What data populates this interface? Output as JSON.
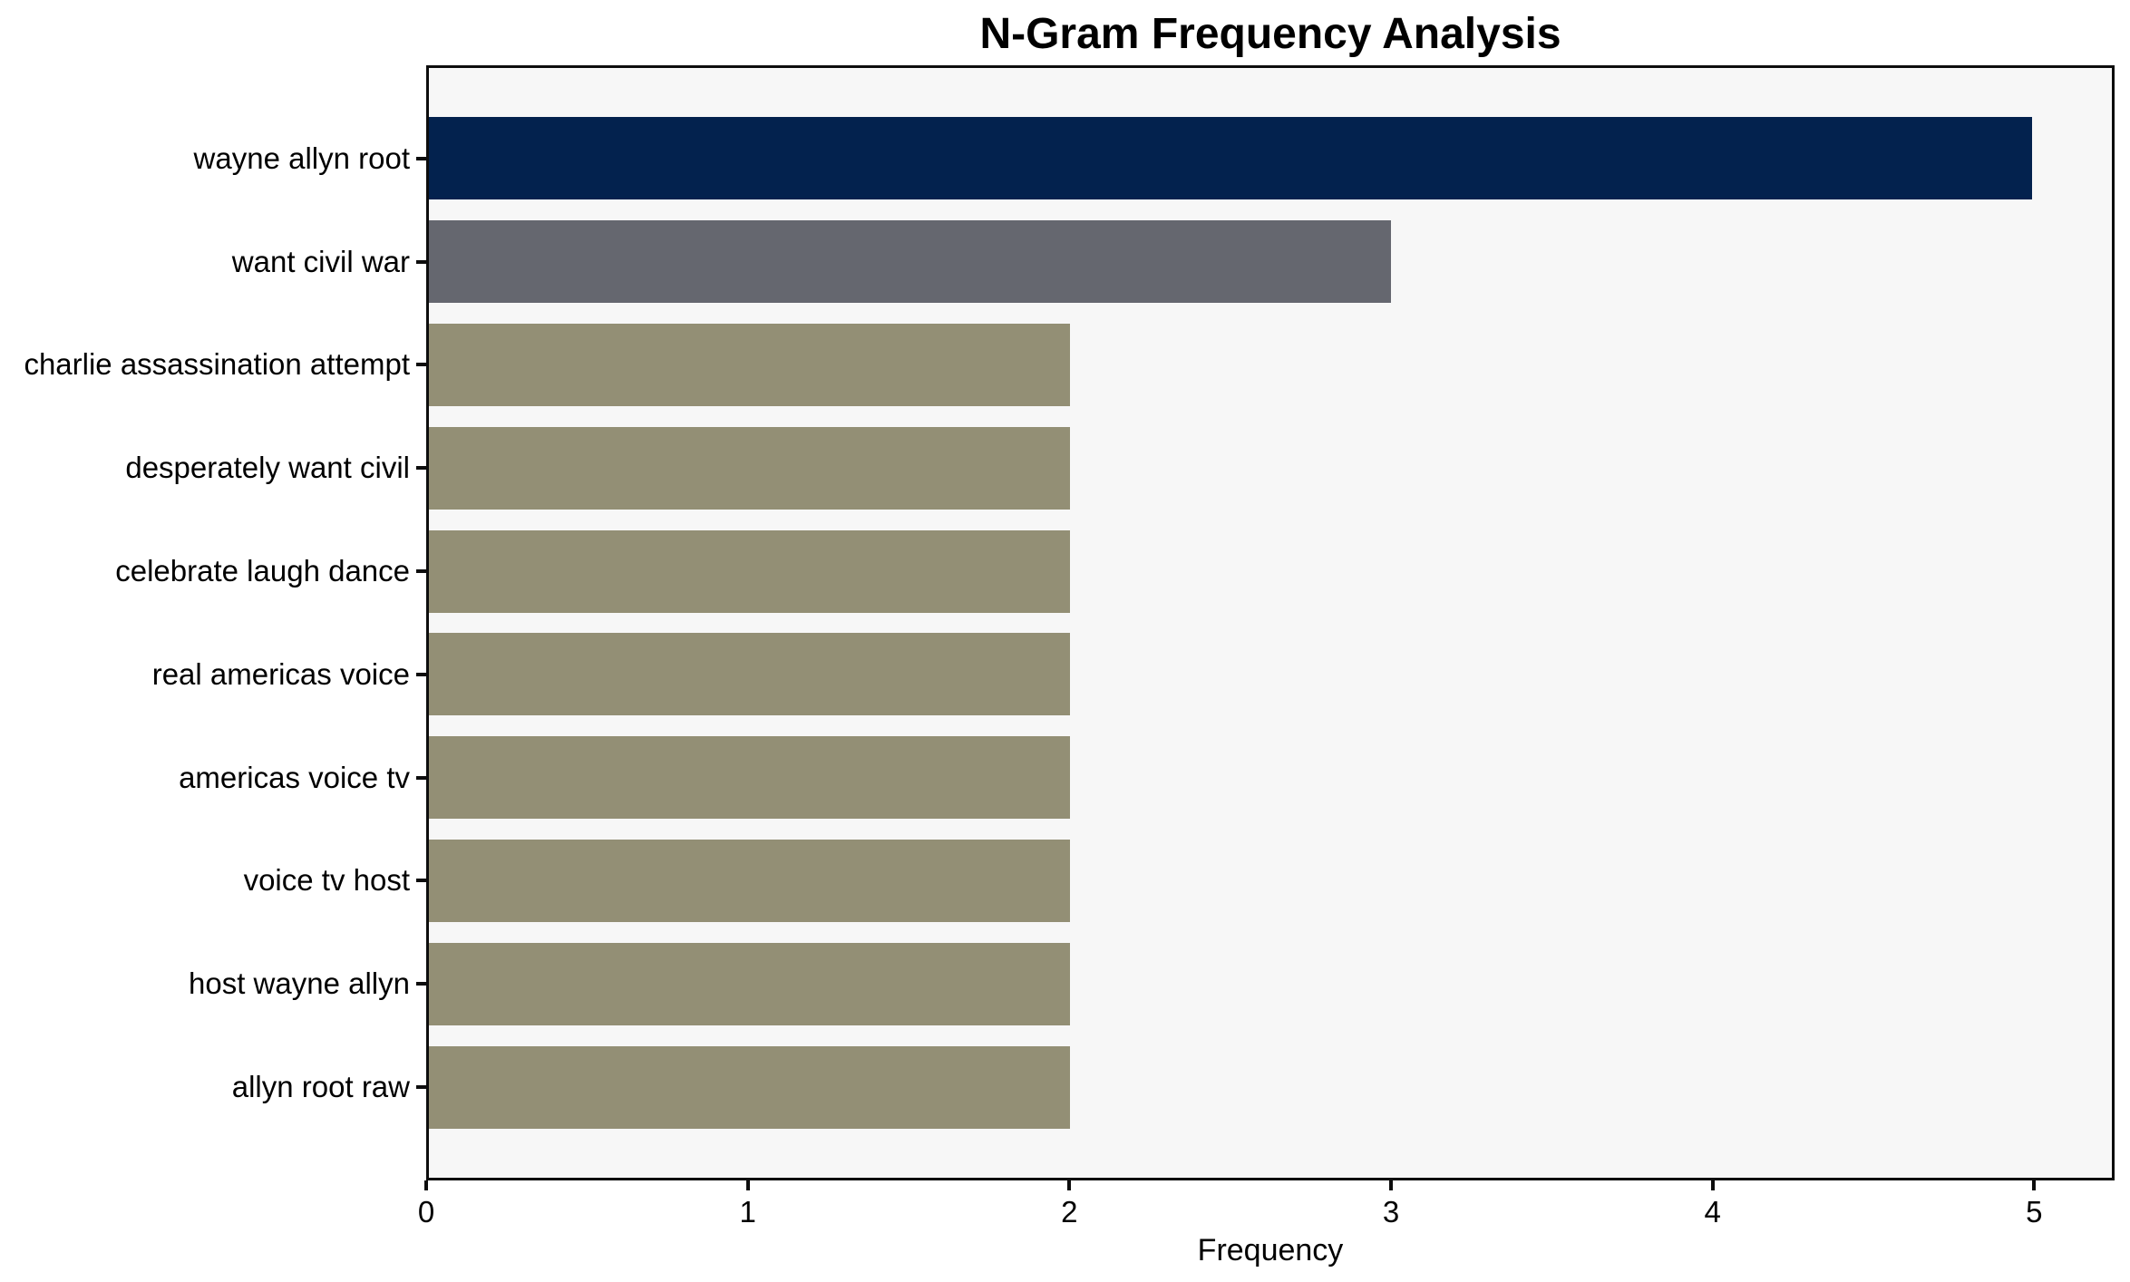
{
  "chart_data": {
    "type": "bar",
    "orientation": "horizontal",
    "title": "N-Gram Frequency Analysis",
    "xlabel": "Frequency",
    "ylabel": "",
    "categories": [
      "wayne allyn root",
      "want civil war",
      "charlie assassination attempt",
      "desperately want civil",
      "celebrate laugh dance",
      "real americas voice",
      "americas voice tv",
      "voice tv host",
      "host wayne allyn",
      "allyn root raw"
    ],
    "values": [
      5,
      3,
      2,
      2,
      2,
      2,
      2,
      2,
      2,
      2
    ],
    "bar_colors": [
      "#03224e",
      "#65676f",
      "#938f75",
      "#938f75",
      "#938f75",
      "#938f75",
      "#938f75",
      "#938f75",
      "#938f75",
      "#938f75"
    ],
    "xlim": [
      0,
      5.25
    ],
    "xticks": [
      0,
      1,
      2,
      3,
      4,
      5
    ],
    "grid": false,
    "legend": false,
    "plot_background": "#f7f7f7",
    "figure_background": "#ffffff",
    "spine_color": "#0d0d0d",
    "text_color": "#000000"
  }
}
